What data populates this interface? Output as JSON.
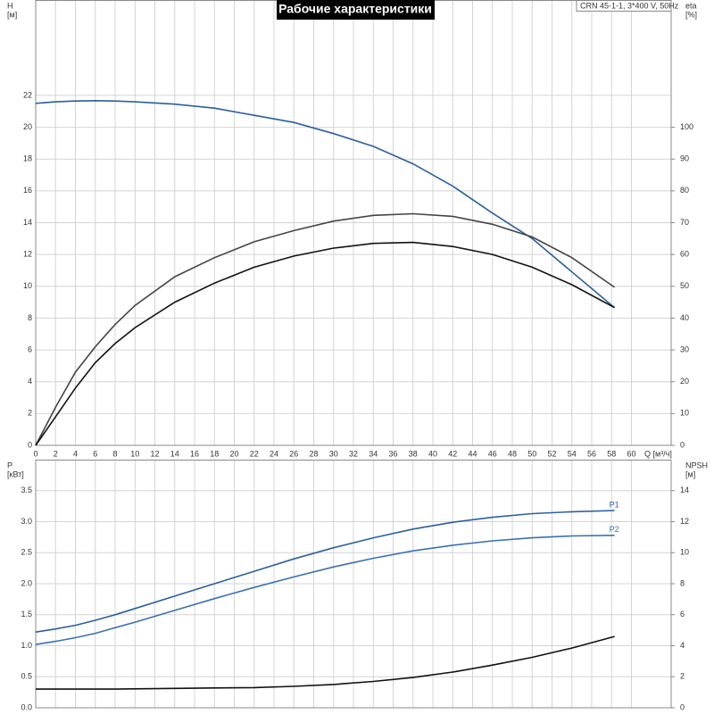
{
  "chart_data": [
    {
      "type": "line",
      "title": "Рабочие характеристики",
      "subtitle": "CRN 45-1-1, 3*400 V, 50Hz",
      "ylabel": "H",
      "ylabel_unit": "[м]",
      "y2label": "eta",
      "y2label_unit": "[%]",
      "xlabel": "Q [м³/ч]",
      "x": [
        0,
        2,
        4,
        6,
        8,
        10,
        14,
        18,
        22,
        26,
        30,
        34,
        38,
        42,
        46,
        50,
        54,
        58.3
      ],
      "xlim": [
        0,
        64
      ],
      "xticks": [
        0,
        2,
        4,
        6,
        8,
        10,
        12,
        14,
        16,
        18,
        20,
        22,
        24,
        26,
        28,
        30,
        32,
        34,
        36,
        38,
        40,
        42,
        44,
        46,
        48,
        50,
        52,
        54,
        56,
        58,
        60
      ],
      "ylim": [
        0,
        28
      ],
      "yticks": [
        0,
        2,
        4,
        6,
        8,
        10,
        12,
        14,
        16,
        18,
        20,
        22
      ],
      "y2lim": [
        0,
        140
      ],
      "y2ticks": [
        0,
        10,
        20,
        30,
        40,
        50,
        60,
        70,
        80,
        90,
        100
      ],
      "grid": true,
      "series": [
        {
          "color": "#2b5f9e",
          "axis": "y",
          "values": [
            21.5,
            21.6,
            21.65,
            21.67,
            21.65,
            21.6,
            21.45,
            21.2,
            20.75,
            20.3,
            19.6,
            18.8,
            17.7,
            16.3,
            14.6,
            13.0,
            10.9,
            8.65
          ]
        },
        {
          "color": "#444444",
          "axis": "y2",
          "values": [
            0,
            12,
            23,
            31,
            38,
            44,
            53,
            59,
            64,
            67.5,
            70.5,
            72.3,
            72.8,
            72,
            69.5,
            65.5,
            59,
            49.7
          ]
        },
        {
          "color": "#111111",
          "axis": "y2",
          "values": [
            0,
            9,
            18,
            26,
            32,
            37,
            45,
            51,
            56,
            59.5,
            62,
            63.5,
            63.8,
            62.5,
            60,
            56,
            50.5,
            43.3
          ]
        }
      ]
    },
    {
      "type": "line",
      "ylabel": "P",
      "ylabel_unit": "[кВт]",
      "y2label": "NPSH",
      "y2label_unit": "[м]",
      "x": [
        0,
        2,
        4,
        6,
        8,
        10,
        14,
        18,
        22,
        26,
        30,
        34,
        38,
        42,
        46,
        50,
        54,
        58.3
      ],
      "xlim": [
        0,
        64
      ],
      "xticks": [
        0,
        2,
        4,
        6,
        8,
        10,
        12,
        14,
        16,
        18,
        20,
        22,
        24,
        26,
        28,
        30,
        32,
        34,
        36,
        38,
        40,
        42,
        44,
        46,
        48,
        50,
        52,
        54,
        56,
        58,
        60
      ],
      "ylim": [
        0,
        4
      ],
      "yticks": [
        {
          "value": 0,
          "label": "0.0"
        },
        0.5,
        {
          "value": 1,
          "label": "1.0"
        },
        1.5,
        {
          "value": 2,
          "label": "2.0"
        },
        2.5,
        {
          "value": 3,
          "label": "3.0"
        },
        3.5
      ],
      "y2lim": [
        0,
        16
      ],
      "y2ticks": [
        0,
        2,
        4,
        6,
        8,
        10,
        12,
        14
      ],
      "grid": true,
      "series": [
        {
          "name": "P1",
          "color": "#2b5f9e",
          "axis": "y",
          "values": [
            1.22,
            1.27,
            1.33,
            1.41,
            1.5,
            1.6,
            1.8,
            2.0,
            2.2,
            2.4,
            2.58,
            2.74,
            2.88,
            2.99,
            3.07,
            3.13,
            3.16,
            3.18
          ]
        },
        {
          "name": "P2",
          "color": "#3a70b2",
          "axis": "y",
          "values": [
            1.02,
            1.07,
            1.13,
            1.2,
            1.29,
            1.38,
            1.57,
            1.76,
            1.94,
            2.11,
            2.27,
            2.41,
            2.53,
            2.62,
            2.69,
            2.74,
            2.77,
            2.78
          ]
        },
        {
          "color": "#111111",
          "axis": "y2",
          "values": [
            1.2,
            1.2,
            1.2,
            1.2,
            1.2,
            1.22,
            1.25,
            1.28,
            1.3,
            1.38,
            1.5,
            1.7,
            1.95,
            2.3,
            2.75,
            3.25,
            3.85,
            4.6
          ]
        }
      ]
    }
  ]
}
